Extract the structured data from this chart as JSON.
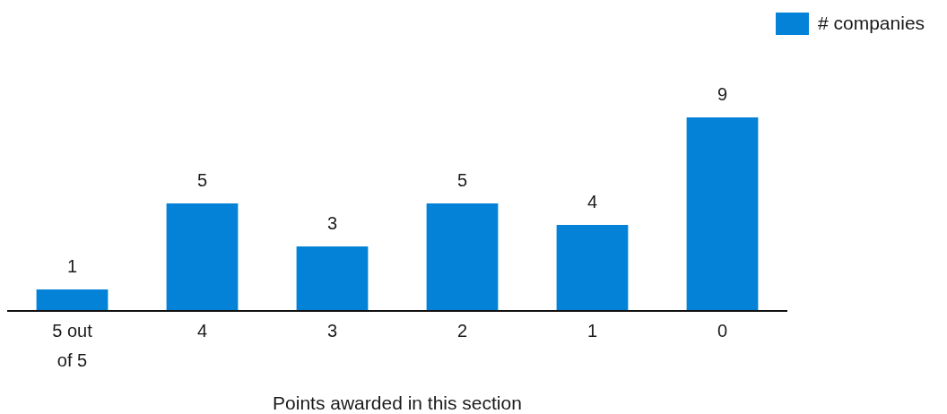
{
  "chart_data": {
    "type": "bar",
    "xlabel": "Points awarded in this section",
    "categories": [
      "5 out of 5",
      "4",
      "3",
      "2",
      "1",
      "0"
    ],
    "series": [
      {
        "name": "# companies",
        "color": "#0482d8",
        "values": [
          1,
          5,
          3,
          5,
          4,
          9
        ]
      }
    ],
    "data_labels": true,
    "legend": "top right"
  }
}
